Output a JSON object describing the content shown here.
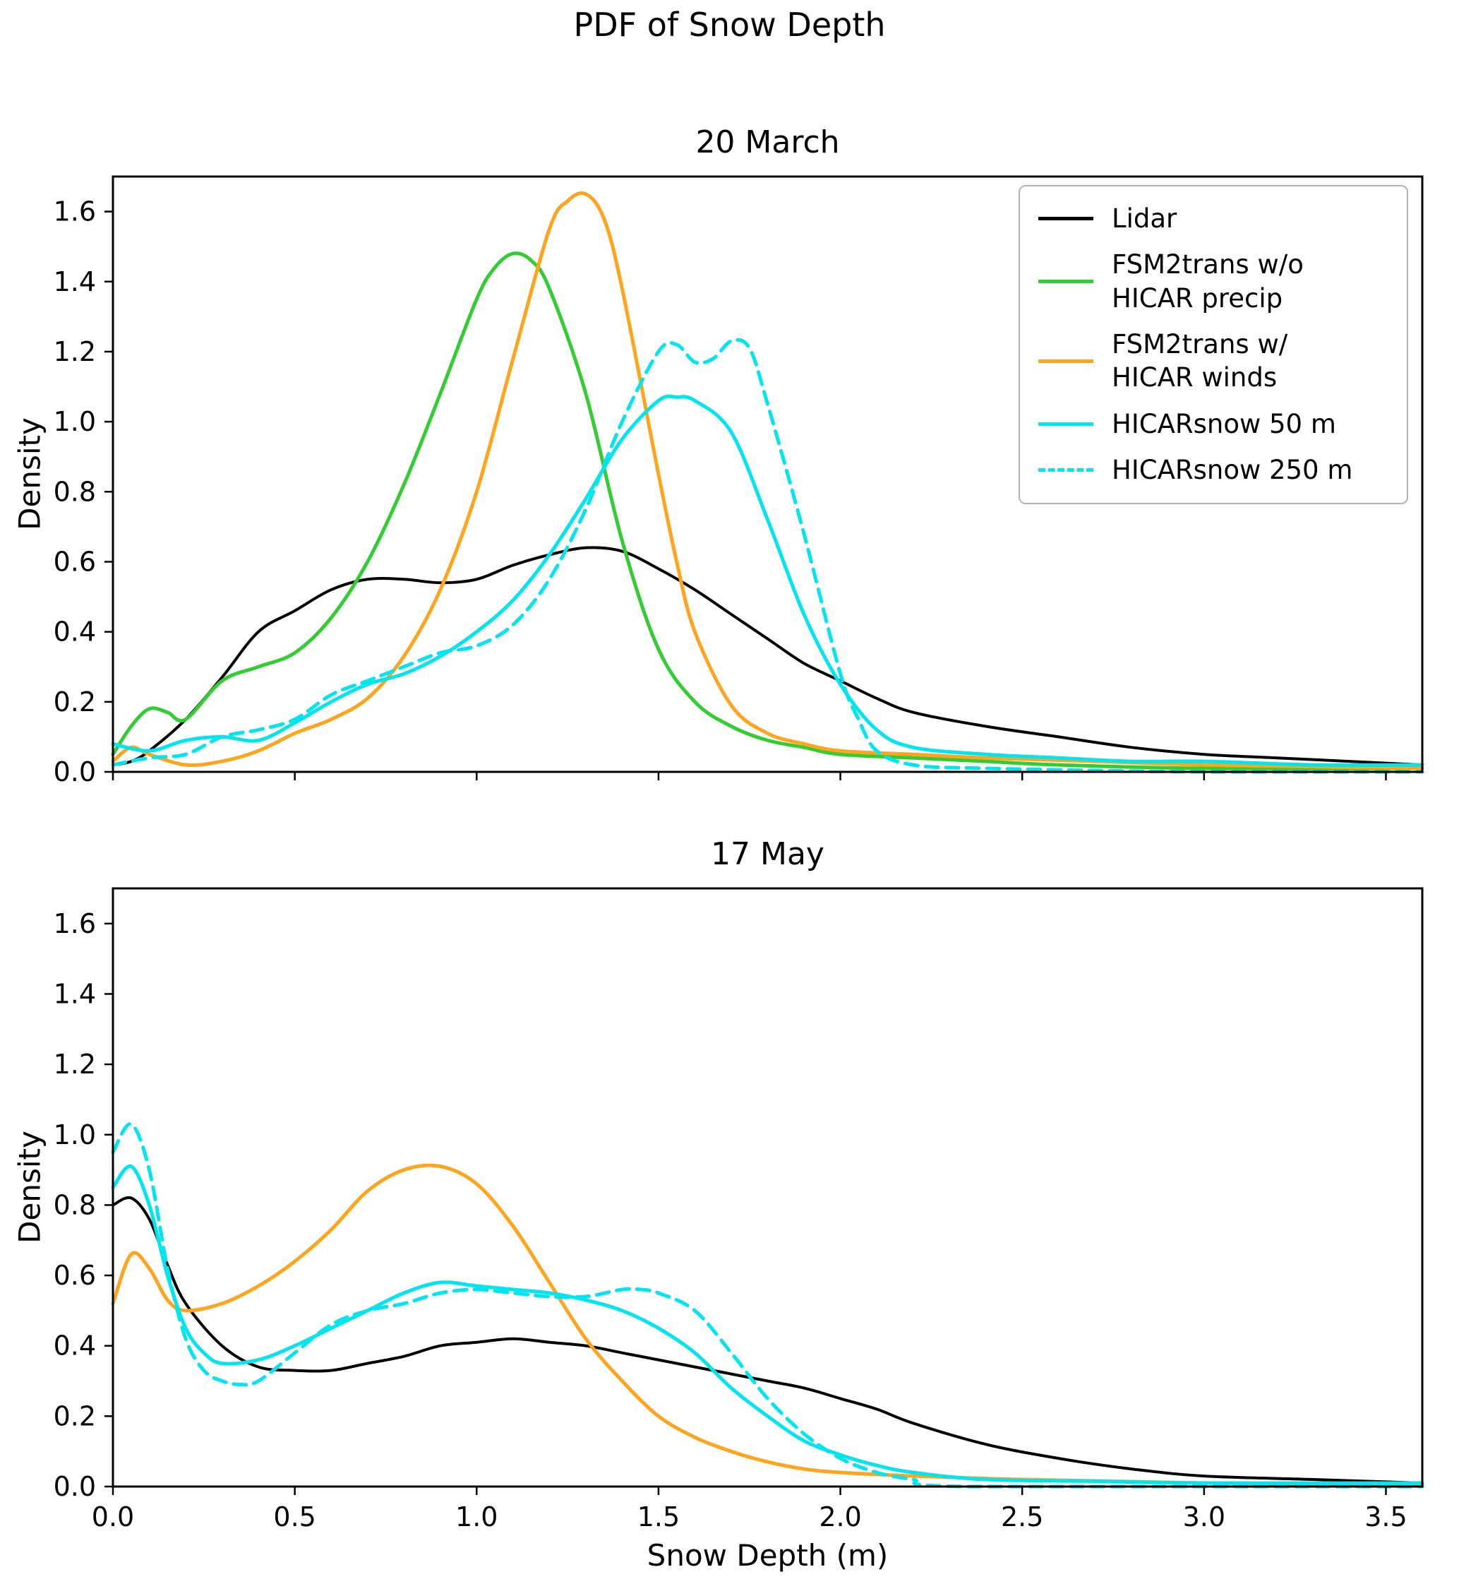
{
  "page": {
    "suptitle": "PDF of Snow Depth",
    "background": "#ffffff"
  },
  "legend": {
    "items": [
      {
        "label": "Lidar",
        "color": "#000000",
        "dash": false
      },
      {
        "label": "FSM2trans w/o\nHICAR precip",
        "color": "#32cd32",
        "dash": false
      },
      {
        "label": "FSM2trans w/\nHICAR winds",
        "color": "#ffa41b",
        "dash": false
      },
      {
        "label": "HICARsnow 50 m",
        "color": "#00e5ee",
        "dash": false
      },
      {
        "label": "HICARsnow 250 m",
        "color": "#00e5ee",
        "dash": true
      }
    ]
  },
  "chart_data": [
    {
      "type": "line",
      "title": "20 March",
      "xlabel": "",
      "ylabel": "Density",
      "xlim": [
        0,
        3.6
      ],
      "ylim": [
        0,
        1.7
      ],
      "grid": false,
      "legend_position": "upper right",
      "xticks": [
        0.0,
        0.5,
        1.0,
        1.5,
        2.0,
        2.5,
        3.0,
        3.5
      ],
      "xtick_labels": [
        "0.0",
        "0.5",
        "1.0",
        "1.5",
        "2.0",
        "2.5",
        "3.0",
        "3.5"
      ],
      "yticks": [
        0.0,
        0.2,
        0.4,
        0.6,
        0.8,
        1.0,
        1.2,
        1.4,
        1.6
      ],
      "ytick_labels": [
        "0.0",
        "0.2",
        "0.4",
        "0.6",
        "0.8",
        "1.0",
        "1.2",
        "1.4",
        "1.6"
      ],
      "series": [
        {
          "name": "Lidar",
          "color": "#000000",
          "dash": false,
          "x": [
            0,
            0.05,
            0.1,
            0.2,
            0.3,
            0.4,
            0.5,
            0.6,
            0.7,
            0.8,
            0.9,
            1.0,
            1.1,
            1.2,
            1.3,
            1.4,
            1.5,
            1.6,
            1.7,
            1.8,
            1.9,
            2.0,
            2.1,
            2.2,
            2.4,
            2.6,
            2.8,
            3.0,
            3.2,
            3.4,
            3.6
          ],
          "y": [
            0.02,
            0.03,
            0.06,
            0.15,
            0.27,
            0.4,
            0.46,
            0.52,
            0.55,
            0.55,
            0.54,
            0.55,
            0.59,
            0.62,
            0.64,
            0.63,
            0.58,
            0.52,
            0.45,
            0.38,
            0.31,
            0.26,
            0.21,
            0.17,
            0.13,
            0.1,
            0.07,
            0.05,
            0.04,
            0.03,
            0.02
          ]
        },
        {
          "name": "FSM2trans w/o HICAR precip",
          "color": "#32cd32",
          "dash": false,
          "x": [
            0,
            0.05,
            0.1,
            0.15,
            0.2,
            0.3,
            0.4,
            0.5,
            0.6,
            0.7,
            0.8,
            0.9,
            1.0,
            1.05,
            1.1,
            1.15,
            1.2,
            1.3,
            1.4,
            1.5,
            1.6,
            1.7,
            1.8,
            1.9,
            2.0,
            2.2,
            2.4,
            2.6,
            3.0,
            3.6
          ],
          "y": [
            0.05,
            0.13,
            0.18,
            0.17,
            0.15,
            0.26,
            0.3,
            0.34,
            0.44,
            0.6,
            0.82,
            1.08,
            1.35,
            1.44,
            1.48,
            1.46,
            1.38,
            1.08,
            0.66,
            0.35,
            0.2,
            0.13,
            0.09,
            0.07,
            0.05,
            0.04,
            0.03,
            0.02,
            0.01,
            0.01
          ]
        },
        {
          "name": "FSM2trans w/ HICAR winds",
          "color": "#ffa41b",
          "dash": false,
          "x": [
            0,
            0.05,
            0.1,
            0.2,
            0.3,
            0.4,
            0.5,
            0.6,
            0.7,
            0.8,
            0.9,
            1.0,
            1.1,
            1.2,
            1.25,
            1.3,
            1.35,
            1.4,
            1.5,
            1.55,
            1.6,
            1.7,
            1.8,
            1.9,
            2.0,
            2.2,
            2.4,
            2.7,
            3.0,
            3.6
          ],
          "y": [
            0.03,
            0.07,
            0.05,
            0.02,
            0.03,
            0.06,
            0.11,
            0.15,
            0.21,
            0.33,
            0.52,
            0.8,
            1.18,
            1.55,
            1.63,
            1.65,
            1.58,
            1.38,
            0.85,
            0.6,
            0.4,
            0.19,
            0.11,
            0.08,
            0.06,
            0.05,
            0.04,
            0.03,
            0.02,
            0.01
          ]
        },
        {
          "name": "HICARsnow 50 m",
          "color": "#00e5ee",
          "dash": false,
          "x": [
            0,
            0.1,
            0.2,
            0.3,
            0.4,
            0.5,
            0.6,
            0.7,
            0.8,
            0.9,
            1.0,
            1.1,
            1.2,
            1.3,
            1.4,
            1.5,
            1.55,
            1.6,
            1.7,
            1.8,
            1.9,
            2.0,
            2.1,
            2.2,
            2.4,
            2.6,
            2.8,
            3.0,
            3.3,
            3.6
          ],
          "y": [
            0.08,
            0.06,
            0.09,
            0.1,
            0.09,
            0.14,
            0.2,
            0.25,
            0.28,
            0.33,
            0.4,
            0.49,
            0.62,
            0.78,
            0.95,
            1.06,
            1.07,
            1.06,
            0.97,
            0.72,
            0.45,
            0.25,
            0.12,
            0.07,
            0.05,
            0.04,
            0.03,
            0.03,
            0.02,
            0.02
          ]
        },
        {
          "name": "HICARsnow 250 m",
          "color": "#00e5ee",
          "dash": true,
          "x": [
            0,
            0.1,
            0.2,
            0.3,
            0.4,
            0.5,
            0.6,
            0.7,
            0.8,
            0.9,
            1.0,
            1.1,
            1.2,
            1.3,
            1.4,
            1.5,
            1.55,
            1.6,
            1.65,
            1.7,
            1.75,
            1.8,
            1.9,
            2.0,
            2.05,
            2.1,
            2.2,
            2.4,
            3.0,
            3.6
          ],
          "y": [
            0.02,
            0.04,
            0.05,
            0.1,
            0.12,
            0.15,
            0.22,
            0.26,
            0.3,
            0.34,
            0.36,
            0.42,
            0.55,
            0.75,
            1.0,
            1.2,
            1.22,
            1.17,
            1.18,
            1.23,
            1.21,
            1.05,
            0.68,
            0.28,
            0.15,
            0.06,
            0.02,
            0.01,
            0.0,
            0.0
          ]
        }
      ]
    },
    {
      "type": "line",
      "title": "17 May",
      "xlabel": "Snow Depth (m)",
      "ylabel": "Density",
      "xlim": [
        0,
        3.6
      ],
      "ylim": [
        0,
        1.7
      ],
      "grid": false,
      "xticks": [
        0.0,
        0.5,
        1.0,
        1.5,
        2.0,
        2.5,
        3.0,
        3.5
      ],
      "xtick_labels": [
        "0.0",
        "0.5",
        "1.0",
        "1.5",
        "2.0",
        "2.5",
        "3.0",
        "3.5"
      ],
      "yticks": [
        0.0,
        0.2,
        0.4,
        0.6,
        0.8,
        1.0,
        1.2,
        1.4,
        1.6
      ],
      "ytick_labels": [
        "0.0",
        "0.2",
        "0.4",
        "0.6",
        "0.8",
        "1.0",
        "1.2",
        "1.4",
        "1.6"
      ],
      "series": [
        {
          "name": "Lidar",
          "color": "#000000",
          "dash": false,
          "x": [
            0,
            0.05,
            0.1,
            0.15,
            0.2,
            0.3,
            0.4,
            0.5,
            0.6,
            0.7,
            0.8,
            0.9,
            1.0,
            1.1,
            1.2,
            1.3,
            1.4,
            1.5,
            1.6,
            1.7,
            1.8,
            1.9,
            2.0,
            2.1,
            2.2,
            2.4,
            2.6,
            2.8,
            3.0,
            3.3,
            3.6
          ],
          "y": [
            0.8,
            0.82,
            0.76,
            0.63,
            0.52,
            0.4,
            0.34,
            0.33,
            0.33,
            0.35,
            0.37,
            0.4,
            0.41,
            0.42,
            0.41,
            0.4,
            0.38,
            0.36,
            0.34,
            0.32,
            0.3,
            0.28,
            0.25,
            0.22,
            0.18,
            0.12,
            0.08,
            0.05,
            0.03,
            0.02,
            0.01
          ]
        },
        {
          "name": "FSM2trans w/ HICAR winds",
          "color": "#ffa41b",
          "dash": false,
          "x": [
            0,
            0.05,
            0.1,
            0.15,
            0.2,
            0.3,
            0.4,
            0.5,
            0.6,
            0.7,
            0.8,
            0.9,
            1.0,
            1.1,
            1.2,
            1.3,
            1.4,
            1.5,
            1.6,
            1.7,
            1.8,
            1.9,
            2.0,
            2.2,
            2.5,
            3.0,
            3.6
          ],
          "y": [
            0.52,
            0.66,
            0.62,
            0.53,
            0.5,
            0.52,
            0.57,
            0.64,
            0.73,
            0.84,
            0.9,
            0.91,
            0.86,
            0.74,
            0.58,
            0.42,
            0.3,
            0.2,
            0.14,
            0.1,
            0.07,
            0.05,
            0.04,
            0.03,
            0.02,
            0.01,
            0.005
          ]
        },
        {
          "name": "HICARsnow 50 m",
          "color": "#00e5ee",
          "dash": false,
          "x": [
            0,
            0.05,
            0.1,
            0.15,
            0.2,
            0.25,
            0.3,
            0.4,
            0.5,
            0.6,
            0.7,
            0.8,
            0.9,
            1.0,
            1.1,
            1.2,
            1.3,
            1.4,
            1.5,
            1.6,
            1.7,
            1.8,
            1.9,
            2.0,
            2.1,
            2.2,
            2.4,
            2.7,
            3.0,
            3.6
          ],
          "y": [
            0.85,
            0.91,
            0.8,
            0.6,
            0.45,
            0.38,
            0.35,
            0.36,
            0.4,
            0.45,
            0.5,
            0.55,
            0.58,
            0.57,
            0.56,
            0.55,
            0.53,
            0.5,
            0.45,
            0.38,
            0.28,
            0.2,
            0.13,
            0.09,
            0.06,
            0.04,
            0.02,
            0.015,
            0.01,
            0.01
          ]
        },
        {
          "name": "HICARsnow 250 m",
          "color": "#00e5ee",
          "dash": true,
          "x": [
            0,
            0.05,
            0.1,
            0.15,
            0.2,
            0.25,
            0.3,
            0.35,
            0.4,
            0.5,
            0.6,
            0.7,
            0.8,
            0.9,
            1.0,
            1.1,
            1.2,
            1.3,
            1.4,
            1.45,
            1.5,
            1.6,
            1.7,
            1.8,
            1.9,
            2.0,
            2.1,
            2.2,
            2.35,
            3.6
          ],
          "y": [
            0.95,
            1.03,
            0.9,
            0.62,
            0.42,
            0.33,
            0.3,
            0.29,
            0.3,
            0.38,
            0.46,
            0.5,
            0.52,
            0.55,
            0.56,
            0.55,
            0.54,
            0.54,
            0.56,
            0.56,
            0.55,
            0.5,
            0.38,
            0.25,
            0.15,
            0.08,
            0.04,
            0.02,
            0.0,
            0.0
          ]
        }
      ]
    }
  ]
}
